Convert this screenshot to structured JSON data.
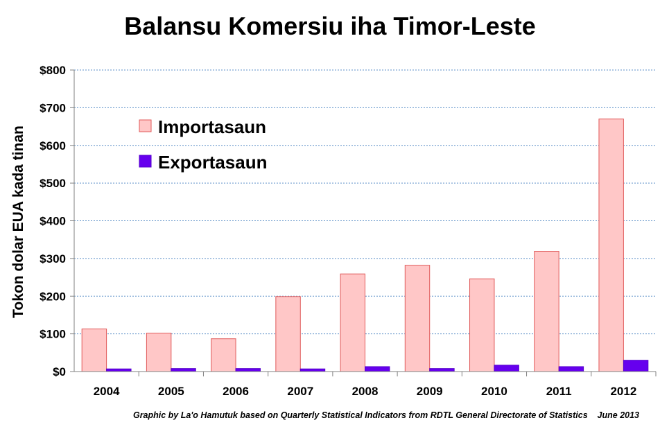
{
  "chart_data": {
    "type": "bar",
    "title": "Balansu Komersiu iha Timor-Leste",
    "xlabel": "",
    "ylabel": "Tokon dolar EUA kada tinan",
    "categories": [
      "2004",
      "2005",
      "2006",
      "2007",
      "2008",
      "2009",
      "2010",
      "2011",
      "2012"
    ],
    "series": [
      {
        "name": "Importasaun",
        "values": [
          113,
          102,
          87,
          199,
          259,
          282,
          246,
          319,
          670
        ],
        "color": "#ffc7c7",
        "stroke": "#e05a5a"
      },
      {
        "name": "Exportasaun",
        "values": [
          7,
          8,
          8,
          7,
          13,
          8,
          17,
          13,
          30
        ],
        "color": "#6600ee",
        "stroke": "#5500cc"
      }
    ],
    "ylim": [
      0,
      800
    ],
    "yticks": [
      0,
      100,
      200,
      300,
      400,
      500,
      600,
      700,
      800
    ],
    "ytick_labels": [
      "$0",
      "$100",
      "$200",
      "$300",
      "$400",
      "$500",
      "$600",
      "$700",
      "$800"
    ],
    "grid": true,
    "legend_position": "top-left",
    "footnote": "Graphic by La'o Hamutuk based on Quarterly Statistical Indicators from RDTL General Directorate of Statistics    June 2013"
  }
}
